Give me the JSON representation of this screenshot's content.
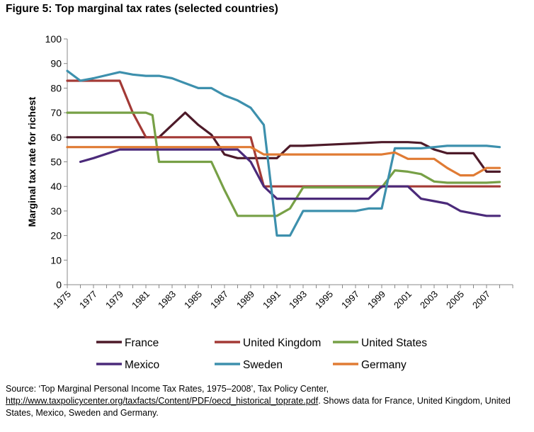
{
  "figure_title": "Figure 5: Top marginal tax rates (selected countries)",
  "source": {
    "prefix": "Source: ‘Top Marginal Personal Income Tax Rates, 1975–2008’, Tax Policy Center,",
    "url": "http://www.taxpolicycenter.org/taxfacts/Content/PDF/oecd_historical_toprate.pdf",
    "suffix": ". Shows data for France, United Kingdom, United States, Mexico, Sweden and Germany."
  },
  "chart_data": {
    "type": "line",
    "title": "Figure 5: Top marginal tax rates (selected countries)",
    "xlabel": "",
    "ylabel": "Marginal tax rate for richest",
    "ylim": [
      0,
      100
    ],
    "xlim": [
      1975,
      2008
    ],
    "y_ticks": [
      0,
      10,
      20,
      30,
      40,
      50,
      60,
      70,
      80,
      90,
      100
    ],
    "x_tick_labels": [
      "1975",
      "1977",
      "1979",
      "1981",
      "1983",
      "1985",
      "1987",
      "1989",
      "1991",
      "1993",
      "1995",
      "1997",
      "1999",
      "2001",
      "2003",
      "2005",
      "2007"
    ],
    "grid": false,
    "legend_position": "bottom",
    "series": [
      {
        "name": "France",
        "color": "#4d1a29",
        "points": [
          [
            1975,
            60
          ],
          [
            1981,
            60
          ],
          [
            1982,
            60
          ],
          [
            1984,
            70
          ],
          [
            1985,
            65
          ],
          [
            1986,
            61
          ],
          [
            1987,
            53
          ],
          [
            1988,
            51.5
          ],
          [
            1990,
            51.5
          ],
          [
            1991,
            51.5
          ],
          [
            1992,
            56.5
          ],
          [
            1993,
            56.5
          ],
          [
            1995,
            57
          ],
          [
            1997,
            57.5
          ],
          [
            1999,
            58
          ],
          [
            2001,
            58
          ],
          [
            2002,
            57.7
          ],
          [
            2003,
            55
          ],
          [
            2004,
            53.5
          ],
          [
            2006,
            53.5
          ],
          [
            2007,
            46
          ],
          [
            2008,
            46
          ]
        ]
      },
      {
        "name": "United Kingdom",
        "color": "#a33a36",
        "points": [
          [
            1975,
            83
          ],
          [
            1979,
            83
          ],
          [
            1980,
            70
          ],
          [
            1981,
            60
          ],
          [
            1988,
            60
          ],
          [
            1989,
            60
          ],
          [
            1990,
            40
          ],
          [
            2008,
            40
          ]
        ]
      },
      {
        "name": "United States",
        "color": "#77a046",
        "points": [
          [
            1975,
            70
          ],
          [
            1981,
            70
          ],
          [
            1981.5,
            69
          ],
          [
            1982,
            50
          ],
          [
            1986,
            50
          ],
          [
            1987,
            38.5
          ],
          [
            1988,
            28
          ],
          [
            1990,
            28
          ],
          [
            1991,
            28
          ],
          [
            1992,
            31
          ],
          [
            1993,
            39.6
          ],
          [
            1999,
            39.6
          ],
          [
            2000,
            46.5
          ],
          [
            2001,
            46
          ],
          [
            2002,
            45
          ],
          [
            2003,
            42
          ],
          [
            2004,
            41.5
          ],
          [
            2007,
            41.5
          ],
          [
            2008,
            41.8
          ]
        ]
      },
      {
        "name": "Mexico",
        "color": "#4b2a7a",
        "points": [
          [
            1976,
            50
          ],
          [
            1977,
            51.5
          ],
          [
            1979,
            55
          ],
          [
            1988,
            55
          ],
          [
            1989,
            50
          ],
          [
            1990,
            40
          ],
          [
            1991,
            35
          ],
          [
            1992,
            35
          ],
          [
            1998,
            35
          ],
          [
            1999,
            40
          ],
          [
            2001,
            40
          ],
          [
            2002,
            35
          ],
          [
            2003,
            34
          ],
          [
            2004,
            33
          ],
          [
            2005,
            30
          ],
          [
            2006,
            29
          ],
          [
            2007,
            28
          ],
          [
            2008,
            28
          ]
        ]
      },
      {
        "name": "Sweden",
        "color": "#3d90ad",
        "points": [
          [
            1975,
            87
          ],
          [
            1976,
            83
          ],
          [
            1977,
            84
          ],
          [
            1979,
            86.5
          ],
          [
            1980,
            85.5
          ],
          [
            1981,
            85
          ],
          [
            1982,
            85
          ],
          [
            1983,
            84
          ],
          [
            1984,
            82
          ],
          [
            1985,
            80
          ],
          [
            1986,
            80
          ],
          [
            1987,
            77
          ],
          [
            1988,
            75
          ],
          [
            1989,
            72
          ],
          [
            1990,
            65
          ],
          [
            1991,
            20
          ],
          [
            1992,
            20
          ],
          [
            1993,
            30
          ],
          [
            1996,
            30
          ],
          [
            1997,
            30
          ],
          [
            1998,
            31
          ],
          [
            1999,
            31
          ],
          [
            2000,
            55.5
          ],
          [
            2002,
            55.5
          ],
          [
            2003,
            56
          ],
          [
            2004,
            56.5
          ],
          [
            2007,
            56.5
          ],
          [
            2008,
            56
          ]
        ]
      },
      {
        "name": "Germany",
        "color": "#e07b34",
        "points": [
          [
            1975,
            56
          ],
          [
            1989,
            56
          ],
          [
            1990,
            53
          ],
          [
            1991,
            53
          ],
          [
            1999,
            53
          ],
          [
            2000,
            53.8
          ],
          [
            2001,
            51.2
          ],
          [
            2003,
            51.2
          ],
          [
            2004,
            47.5
          ],
          [
            2005,
            44.5
          ],
          [
            2006,
            44.5
          ],
          [
            2007,
            47.5
          ],
          [
            2008,
            47.5
          ]
        ]
      }
    ]
  }
}
